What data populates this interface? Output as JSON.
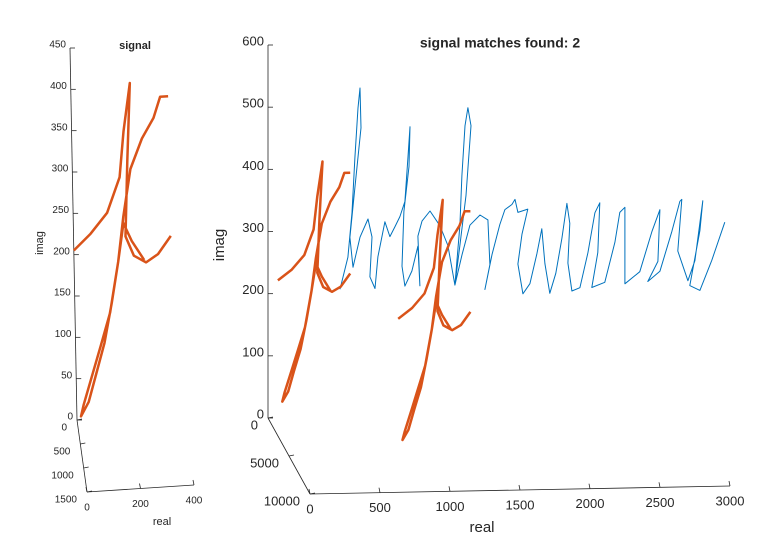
{
  "chart_data": [
    {
      "type": "line3d",
      "title": "signal",
      "xlabel": "real",
      "ylabel": "imag",
      "xlim": [
        0,
        400
      ],
      "xticks": [
        0,
        200,
        400
      ],
      "ylim": [
        0,
        450
      ],
      "yticks": [
        0,
        50,
        100,
        150,
        200,
        250,
        300,
        350,
        400,
        450
      ],
      "zlim": [
        0,
        1500
      ],
      "zticks": [
        0,
        500,
        1000,
        1500
      ],
      "series": [
        {
          "color": "#D95319",
          "z": 0,
          "x": [
            0,
            64,
            127,
            176,
            194,
            221,
            206,
            194,
            224,
            269,
            314,
            363,
            null,
            363,
            333,
            307,
            262,
            217,
            187,
            165,
            131,
            94,
            64,
            26,
            15,
            45,
            75,
            108,
            138,
            165,
            187,
            217,
            262
          ],
          "values": [
            205,
            224,
            248,
            290,
            345,
            403,
            309,
            218,
            194,
            185,
            194,
            215,
            null,
            384,
            384,
            359,
            335,
            299,
            242,
            188,
            127,
            88,
            57,
            18,
            4,
            21,
            54,
            91,
            139,
            188,
            234,
            212,
            188
          ]
        }
      ]
    },
    {
      "type": "line3d",
      "title": "signal matches found: 2",
      "xlabel": "real",
      "ylabel": "imag",
      "xlim": [
        0,
        3000
      ],
      "xticks": [
        0,
        500,
        1000,
        1500,
        2000,
        2500,
        3000
      ],
      "ylim": [
        0,
        600
      ],
      "yticks": [
        0,
        100,
        200,
        300,
        400,
        500,
        600
      ],
      "zlim": [
        0,
        10000
      ],
      "zticks": [
        0,
        5000,
        10000
      ],
      "series": [
        {
          "color": "#0072BD",
          "z": 0,
          "x": [
            514,
            571,
            600,
            621,
            643,
            657,
            664,
            621,
            585,
            607,
            657,
            714,
            743,
            728,
            764,
            785,
            835,
            871,
            907,
            942,
            978,
            1000,
            1014,
            1007,
            971,
            957,
            978,
            1028,
            1071,
            1085,
            1071,
            1100,
            1157,
            1228,
            1285,
            1335,
            1371,
            1385,
            1407,
            1428,
            1450,
            1414,
            1371,
            1335,
            1385,
            1442,
            1514,
            1571,
            1585,
            1549,
            1600,
            1656,
            1692,
            1742,
            1764,
            1785,
            1856,
            1814,
            1785,
            1821,
            1871,
            1921,
            1956,
            1978,
            2013,
            2056,
            2099,
            2135,
            2156,
            2142,
            2171,
            2228,
            2285,
            2335,
            2370,
            2356,
            2313,
            2406,
            2478,
            2513,
            2549,
            2549,
            2549,
            2656,
            2742,
            2799,
            2785,
            2713,
            2799,
            2885,
            2942,
            2956,
            2927,
            2999,
            3049,
            3106,
            3085,
            3013,
            3085,
            3170,
            3263
          ],
          "values": [
            205,
            256,
            328,
            416,
            496,
            528,
            464,
            368,
            288,
            240,
            288,
            317,
            288,
            224,
            205,
            256,
            312,
            288,
            304,
            320,
            344,
            416,
            464,
            400,
            328,
            240,
            208,
            232,
            272,
            208,
            288,
            312,
            328,
            304,
            272,
            208,
            304,
            384,
            464,
            493,
            464,
            352,
            272,
            208,
            256,
            304,
            320,
            312,
            240,
            200,
            256,
            304,
            328,
            336,
            344,
            323,
            328,
            288,
            240,
            192,
            208,
            256,
            296,
            240,
            192,
            224,
            280,
            336,
            304,
            240,
            195,
            200,
            256,
            320,
            336,
            256,
            200,
            208,
            272,
            320,
            328,
            256,
            205,
            224,
            288,
            323,
            240,
            208,
            224,
            288,
            336,
            339,
            256,
            208,
            240,
            336,
            288,
            200,
            192,
            240,
            301
          ]
        },
        {
          "color": "#D95319",
          "z": 0,
          "x": [
            71,
            170,
            259,
            326,
            352,
            389,
            368,
            352,
            394,
            457,
            519,
            587,
            null,
            587,
            545,
            509,
            446,
            384,
            342,
            311,
            264,
            212,
            170,
            118,
            102,
            144,
            186,
            233,
            274,
            311,
            342,
            384,
            446
          ],
          "values": [
            221,
            238,
            261,
            302,
            355,
            411,
            320,
            232,
            209,
            201,
            209,
            230,
            null,
            392,
            392,
            369,
            346,
            311,
            256,
            203,
            145,
            107,
            77,
            40,
            26,
            42,
            75,
            110,
            156,
            203,
            247,
            226,
            203
          ]
        },
        {
          "color": "#D95319",
          "z": 5300,
          "x": [
            771,
            870,
            959,
            1026,
            1052,
            1089,
            1068,
            1052,
            1094,
            1157,
            1219,
            1287,
            null,
            1287,
            1245,
            1209,
            1146,
            1084,
            1042,
            1011,
            964,
            912,
            870,
            818,
            802,
            844,
            886,
            933,
            974,
            1011,
            1042,
            1084,
            1146
          ],
          "values": [
            221,
            238,
            261,
            302,
            355,
            411,
            320,
            232,
            209,
            201,
            209,
            230,
            null,
            392,
            392,
            369,
            346,
            311,
            256,
            203,
            145,
            107,
            77,
            40,
            26,
            42,
            75,
            110,
            156,
            203,
            247,
            226,
            203
          ]
        }
      ]
    }
  ]
}
